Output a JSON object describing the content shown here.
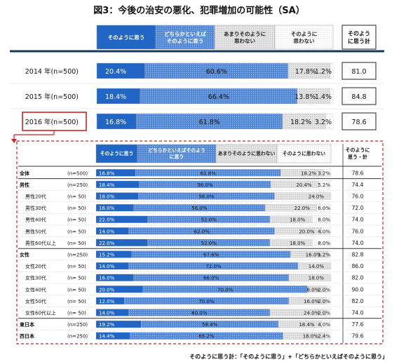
{
  "title": "図3：今後の治安の悪化、犯罪増加の可能性（SA）",
  "colors": {
    "c1": "#2166c5",
    "c2": "#5b8fdc",
    "c3": "#dedede",
    "c4": "#ffffff",
    "navy": "#17375e",
    "highlight": "#cc2222"
  },
  "top_headers": [
    "そのように思う",
    "どちらかといえば\nそのように思う",
    "あまりそのように\n思わない",
    "そのように\n思わない"
  ],
  "top_total_header": "そのよう\nに思う計",
  "bottom_headers": [
    "そのように思う",
    "どちらかといえばそのよう\nに思う",
    "あまりそのように思わない",
    "そのように思わない"
  ],
  "bottom_total_header": "そのように\n思う・計",
  "footnote": "そのように思う計：「そのように思う」+「どちらかといえばそのように思う」",
  "chart_data": [
    {
      "type": "bar",
      "orientation": "horizontal",
      "stacked": true,
      "series_names": [
        "そのように思う",
        "どちらかといえばそのように思う",
        "あまりそのように思わない",
        "そのように思わない"
      ],
      "rows": [
        {
          "label": "2014 年(n=500)",
          "values": [
            20.4,
            60.6,
            17.8,
            1.2
          ],
          "total": "81.0"
        },
        {
          "label": "2015 年(n=500)",
          "values": [
            18.4,
            66.4,
            13.8,
            1.4
          ],
          "total": "84.8"
        },
        {
          "label": "2016 年(n=500)",
          "values": [
            16.8,
            61.8,
            18.2,
            3.2
          ],
          "total": "78.6",
          "highlight": true
        }
      ]
    },
    {
      "type": "bar",
      "orientation": "horizontal",
      "stacked": true,
      "series_names": [
        "そのように思う",
        "どちらかといえばそのように思う",
        "あまりそのように思わない",
        "そのように思わない"
      ],
      "rows": [
        {
          "label": "全体",
          "n": "(n=500)",
          "values": [
            16.8,
            61.8,
            18.2,
            3.2
          ],
          "total": "78.6",
          "indent": false
        },
        {
          "label": "男性",
          "n": "(n=250)",
          "values": [
            18.4,
            56.0,
            20.4,
            5.2
          ],
          "total": "74.4",
          "indent": false,
          "group_start": true
        },
        {
          "label": "男性20代",
          "n": "(n=  50)",
          "values": [
            18.0,
            58.0,
            24.0,
            0.0
          ],
          "total": "76.0",
          "indent": true
        },
        {
          "label": "男性30代",
          "n": "(n=  50)",
          "values": [
            16.0,
            56.0,
            22.0,
            6.0
          ],
          "total": "72.0",
          "indent": true
        },
        {
          "label": "男性40代",
          "n": "(n=  50)",
          "values": [
            22.0,
            52.0,
            18.0,
            8.0
          ],
          "total": "74.0",
          "indent": true
        },
        {
          "label": "男性50代",
          "n": "(n=  50)",
          "values": [
            14.0,
            62.0,
            20.0,
            4.0
          ],
          "total": "76.0",
          "indent": true
        },
        {
          "label": "男性60代以上",
          "n": "(n=  50)",
          "values": [
            22.0,
            52.0,
            18.0,
            8.0
          ],
          "total": "74.0",
          "indent": true
        },
        {
          "label": "女性",
          "n": "(n=250)",
          "values": [
            15.2,
            67.6,
            16.0,
            1.2
          ],
          "total": "82.8",
          "indent": false,
          "group_start": true
        },
        {
          "label": "女性20代",
          "n": "(n=  50)",
          "values": [
            14.0,
            72.0,
            14.0,
            0.0
          ],
          "total": "86.0",
          "indent": true
        },
        {
          "label": "女性30代",
          "n": "(n=  50)",
          "values": [
            16.0,
            66.0,
            18.0,
            0.0
          ],
          "total": "82.0",
          "indent": true
        },
        {
          "label": "女性40代",
          "n": "(n=  50)",
          "values": [
            20.0,
            70.0,
            8.0,
            2.0
          ],
          "total": "90.0",
          "indent": true
        },
        {
          "label": "女性50代",
          "n": "(n=  50)",
          "values": [
            12.0,
            70.0,
            16.0,
            2.0
          ],
          "total": "82.0",
          "indent": true
        },
        {
          "label": "女性60代以上",
          "n": "(n=  50)",
          "values": [
            14.0,
            60.0,
            24.0,
            2.0
          ],
          "total": "74.0",
          "indent": true
        },
        {
          "label": "東日本",
          "n": "(n=250)",
          "values": [
            19.2,
            58.4,
            18.4,
            4.0
          ],
          "total": "77.6",
          "indent": false,
          "group_start": true
        },
        {
          "label": "西日本",
          "n": "(n=250)",
          "values": [
            14.4,
            65.2,
            18.0,
            2.4
          ],
          "total": "79.6",
          "indent": false
        }
      ]
    }
  ]
}
